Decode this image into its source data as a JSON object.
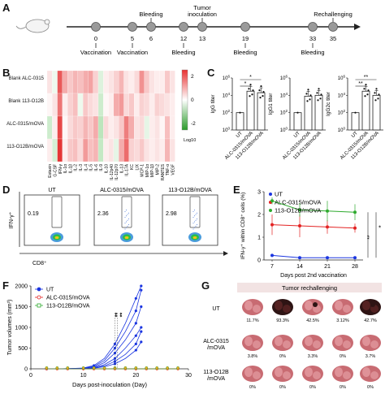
{
  "panels": {
    "A": "A",
    "B": "B",
    "C": "C",
    "D": "D",
    "E": "E",
    "F": "F",
    "G": "G"
  },
  "timeline": {
    "days": [
      "0",
      "5",
      "6",
      "12",
      "13",
      "19",
      "33",
      "35"
    ],
    "events_top": [
      {
        "day": "6",
        "label": "Bleeding"
      },
      {
        "day": "13",
        "label": "Tumor\ninoculation"
      },
      {
        "day": "35",
        "label": "Rechallenging"
      }
    ],
    "events_bottom": [
      {
        "day": "0",
        "label": "Vaccination"
      },
      {
        "day": "5",
        "label": "Vaccination"
      },
      {
        "day": "12",
        "label": "Bleeding"
      },
      {
        "day": "19",
        "label": "Bleeding"
      },
      {
        "day": "33",
        "label": "Bleeding"
      }
    ]
  },
  "heatmap": {
    "rows": [
      "Blank ALC-0315",
      "Blank 113-O12B",
      "ALC-0315/mOVA",
      "113-O12B/mOVA"
    ],
    "columns": [
      "Eotaxin",
      "G-CSF",
      "IFN-γ",
      "IL-1α",
      "IL-1β",
      "IL-2",
      "IL-3",
      "IL-4",
      "IL-5",
      "IL-6",
      "IL-9",
      "IL-10",
      "IL-12p40",
      "IL-12p70",
      "IL-13",
      "IL-17A",
      "KC",
      "LIX",
      "MCP-1",
      "MIP-1α",
      "MIP-1β",
      "MIP-2",
      "RANTES",
      "TNF-α",
      "VEGF"
    ],
    "colorbar_ticks": [
      "2",
      "0",
      "-2"
    ],
    "colorbar_label": "Log10",
    "values": [
      [
        0.3,
        -0.2,
        1.8,
        0.9,
        0.6,
        0.8,
        0.7,
        0.9,
        1.0,
        0.5,
        -0.4,
        0.2,
        0.3,
        0.5,
        0.8,
        0.3,
        0.2,
        0.4,
        1.2,
        0.6,
        0.3,
        0.2,
        0.2,
        0.6,
        0.3
      ],
      [
        0.1,
        0.3,
        1.5,
        0.2,
        0.5,
        0.7,
        -0.2,
        0.6,
        0.4,
        0.3,
        -0.6,
        0.1,
        0.2,
        0.9,
        1.1,
        0.4,
        0.6,
        0.2,
        0.5,
        0.4,
        0.2,
        0.5,
        0.4,
        0.3,
        0.2
      ],
      [
        -0.6,
        0.2,
        2.0,
        0.1,
        0.4,
        0.6,
        0.5,
        0.8,
        0.6,
        0.9,
        -0.8,
        0.4,
        0.2,
        0.3,
        0.6,
        1.4,
        0.9,
        0.3,
        0.4,
        -0.3,
        0.2,
        0.3,
        0.1,
        0.7,
        0.2
      ],
      [
        0.2,
        -0.5,
        2.2,
        0.2,
        0.6,
        0.7,
        0.4,
        1.1,
        0.7,
        0.8,
        -0.7,
        0.2,
        0.3,
        -0.3,
        0.9,
        1.6,
        0.5,
        0.4,
        0.6,
        0.3,
        0.2,
        0.3,
        0.2,
        0.8,
        0.3
      ]
    ]
  },
  "titers": [
    {
      "ylabel": "IgG titer",
      "yticks": [
        "10^0",
        "10^2",
        "10^4",
        "10^6"
      ],
      "groups": [
        "UT",
        "ALC-0315/mOVA",
        "113-O12B/mOVA"
      ],
      "values": [
        100,
        30000,
        20000
      ],
      "sig": [
        "*",
        "*"
      ]
    },
    {
      "ylabel": "IgG1 titer",
      "yticks": [
        "10^0",
        "10^2",
        "10^4",
        "10^6"
      ],
      "groups": [
        "UT",
        "ALC-0315/mOVA",
        "113-O12B/mOVA"
      ],
      "values": [
        100,
        8000,
        10000
      ],
      "sig": []
    },
    {
      "ylabel": "IgG2c titer",
      "yticks": [
        "10^0",
        "10^2",
        "10^4",
        "10^6"
      ],
      "groups": [
        "UT",
        "ALC-0315/mOVA",
        "113-O12B/mOVA"
      ],
      "values": [
        100,
        30000,
        10000
      ],
      "sig": [
        "**",
        "**"
      ]
    }
  ],
  "flow": {
    "panels": [
      {
        "title": "UT",
        "percent": "0.19"
      },
      {
        "title": "ALC-0315/mOVA",
        "percent": "2.36"
      },
      {
        "title": "113-O12B/mOVA",
        "percent": "2.98"
      }
    ],
    "ylabel": "IFN-γ⁺",
    "xlabel": "CD8⁺"
  },
  "ifn_chart": {
    "ylabel": "IFN-γ⁺ within CD8⁺ cells (%)",
    "xlabel": "Days post 2nd vaccination",
    "x_ticks": [
      "7",
      "14",
      "21",
      "28"
    ],
    "y_ticks": [
      "0",
      "1",
      "2",
      "3"
    ],
    "series": [
      {
        "name": "UT",
        "color": "#1a35e0",
        "values": [
          0.2,
          0.1,
          0.1,
          0.1
        ]
      },
      {
        "name": "ALC-0315/mOVA",
        "color": "#e32222",
        "values": [
          1.55,
          1.5,
          1.45,
          1.4
        ]
      },
      {
        "name": "113-O12B/mOVA",
        "color": "#2eaa2e",
        "values": [
          2.6,
          2.2,
          2.15,
          2.1
        ]
      }
    ],
    "sig": [
      "**",
      "*"
    ]
  },
  "tumor_chart": {
    "ylabel": "Tumor volumes (mm³)",
    "xlabel": "Days post-inoculation (Day)",
    "x_ticks": [
      "0",
      "10",
      "20",
      "30"
    ],
    "y_ticks": [
      "0",
      "500",
      "1000",
      "1500",
      "2000"
    ],
    "series": [
      {
        "name": "UT",
        "color": "#1a35e0"
      },
      {
        "name": "ALC-0315/mOVA",
        "color": "#e32222"
      },
      {
        "name": "113-O12B/mOVA",
        "color": "#2eaa2e"
      }
    ],
    "sig": [
      "**",
      "**"
    ]
  },
  "rechallenge": {
    "banner": "Tumor rechallenging",
    "rows": [
      {
        "label": "UT",
        "percents": [
          "11.7%",
          "93.3%",
          "42.5%",
          "3.12%",
          "42.7%"
        ]
      },
      {
        "label": "ALC-0315\n/mOVA",
        "percents": [
          "3.8%",
          "0%",
          "3.3%",
          "0%",
          "3.7%"
        ]
      },
      {
        "label": "113-O12B\n/mOVA",
        "percents": [
          "0%",
          "0%",
          "0%",
          "0%",
          "0%"
        ]
      }
    ]
  }
}
